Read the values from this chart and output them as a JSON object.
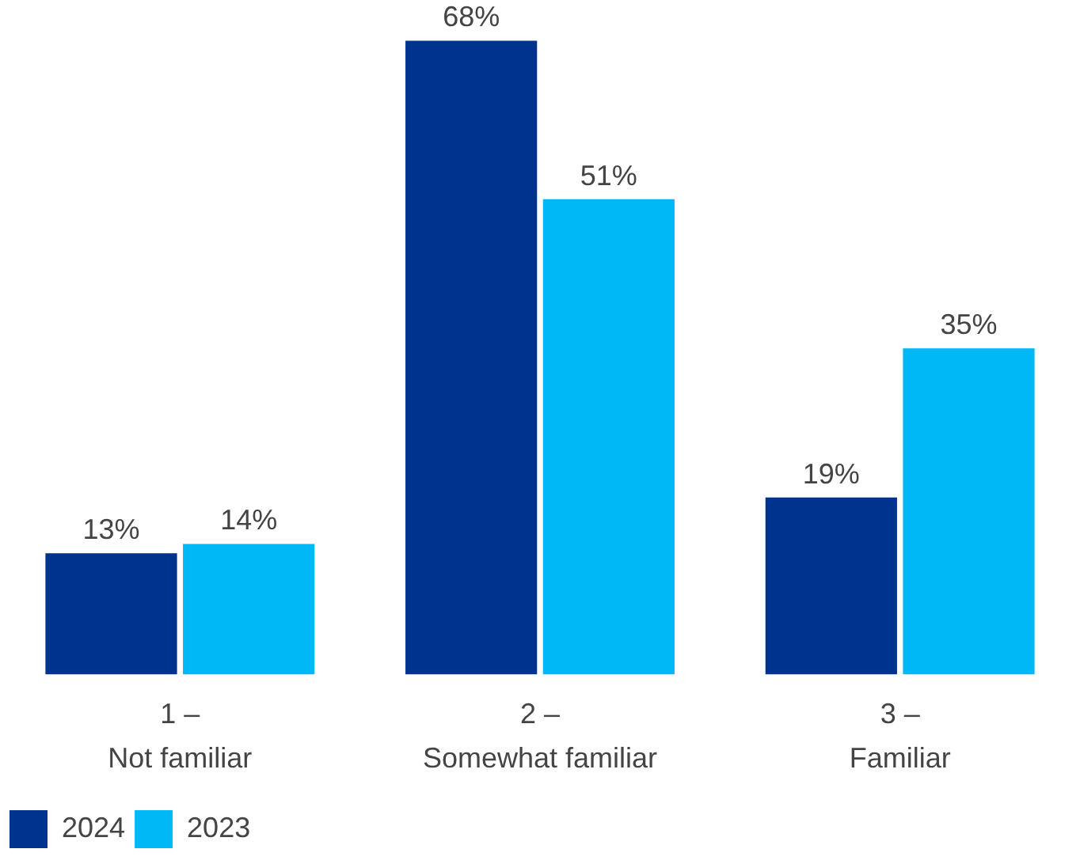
{
  "chart_data": {
    "type": "bar",
    "categories": [
      "1 –\nNot familiar",
      "2 –\nSomewhat familiar",
      "3 –\nFamiliar"
    ],
    "series": [
      {
        "name": "2024",
        "color": "#00338d",
        "values": [
          13,
          68,
          19
        ],
        "value_labels": [
          "13%",
          "68%",
          "19%"
        ]
      },
      {
        "name": "2023",
        "color": "#00b8f5",
        "values": [
          14,
          51,
          35
        ],
        "value_labels": [
          "14%",
          "51%",
          "35%"
        ]
      }
    ],
    "grid": false,
    "legend": "bottom left"
  }
}
